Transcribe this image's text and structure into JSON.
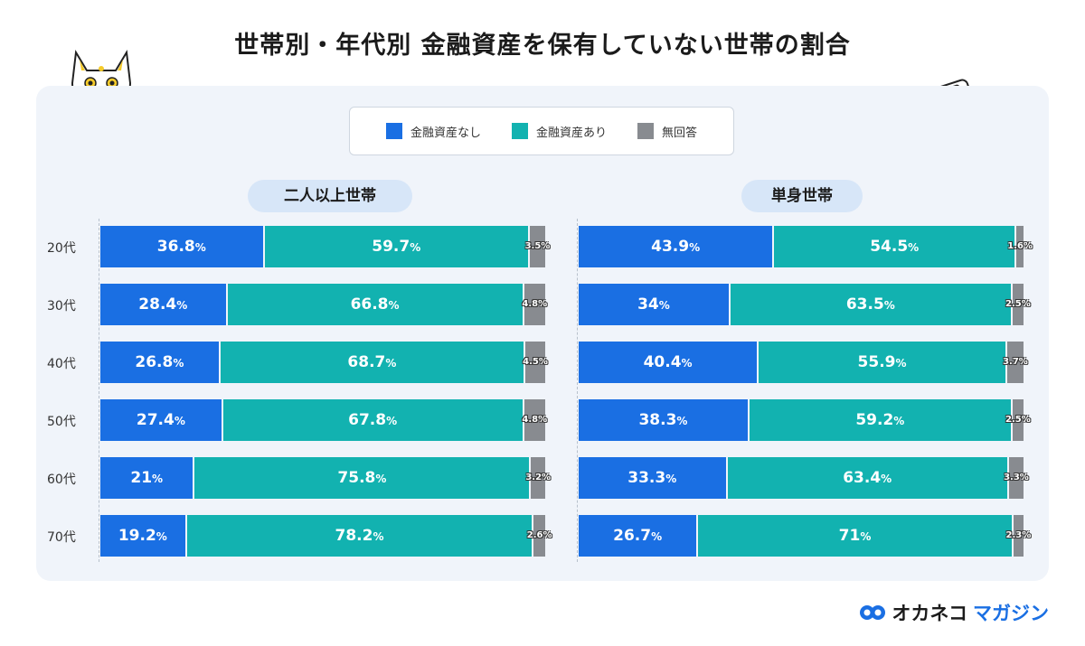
{
  "title": "世帯別・年代別 金融資産を保有していない世帯の割合",
  "legend": [
    {
      "label": "金融資産なし",
      "color": "#1a6fe3"
    },
    {
      "label": "金融資産あり",
      "color": "#12b2b0"
    },
    {
      "label": "無回答",
      "color": "#888b90"
    }
  ],
  "brand": {
    "part1": "オカネコ",
    "part2": "マガジン"
  },
  "chart_data": [
    {
      "type": "bar",
      "stacked": true,
      "orientation": "horizontal",
      "title": "二人以上世帯",
      "categories": [
        "20代",
        "30代",
        "40代",
        "50代",
        "60代",
        "70代"
      ],
      "series": [
        {
          "name": "金融資産なし",
          "values": [
            36.8,
            28.4,
            26.8,
            27.4,
            21,
            19.2
          ]
        },
        {
          "name": "金融資産あり",
          "values": [
            59.7,
            66.8,
            68.7,
            67.8,
            75.8,
            78.2
          ]
        },
        {
          "name": "無回答",
          "values": [
            3.5,
            4.8,
            4.5,
            4.8,
            3.2,
            2.6
          ]
        }
      ],
      "unit": "%"
    },
    {
      "type": "bar",
      "stacked": true,
      "orientation": "horizontal",
      "title": "単身世帯",
      "categories": [
        "20代",
        "30代",
        "40代",
        "50代",
        "60代",
        "70代"
      ],
      "series": [
        {
          "name": "金融資産なし",
          "values": [
            43.9,
            34,
            40.4,
            38.3,
            33.3,
            26.7
          ]
        },
        {
          "name": "金融資産あり",
          "values": [
            54.5,
            63.5,
            55.9,
            59.2,
            63.4,
            71
          ]
        },
        {
          "name": "無回答",
          "values": [
            1.6,
            2.5,
            3.7,
            2.5,
            3.3,
            2.3
          ]
        }
      ],
      "unit": "%"
    }
  ]
}
